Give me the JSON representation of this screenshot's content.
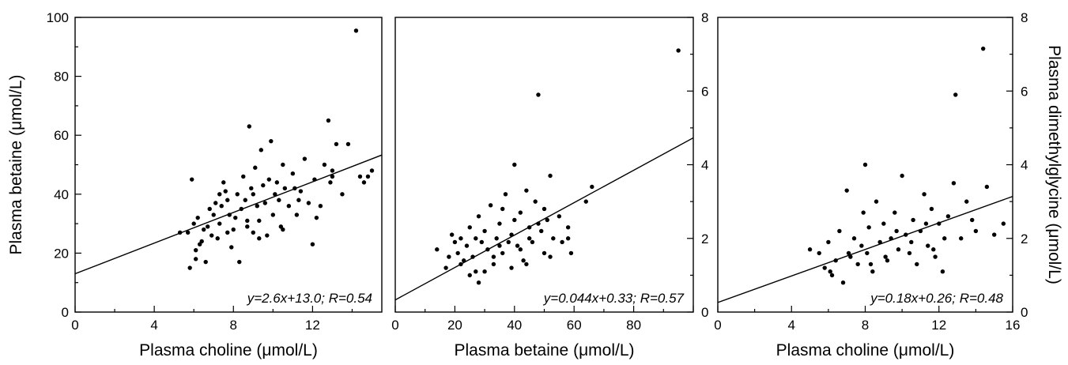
{
  "chart_data": [
    {
      "type": "scatter",
      "xlabel": "Plasma choline (μmol/L)",
      "ylabel": "Plasma betaine (μmol/L)",
      "xlim": [
        0,
        15.5
      ],
      "ylim": [
        0,
        100
      ],
      "xticks": [
        0,
        4,
        8,
        12
      ],
      "yticks": [
        0,
        20,
        40,
        60,
        80,
        100
      ],
      "fit": {
        "slope": 2.6,
        "intercept": 13.0
      },
      "annotation": "y=2.6x+13.0; R=0.54",
      "points": [
        [
          5.3,
          27
        ],
        [
          5.7,
          27
        ],
        [
          5.8,
          15
        ],
        [
          5.9,
          45
        ],
        [
          6.0,
          30
        ],
        [
          6.1,
          18
        ],
        [
          6.2,
          32
        ],
        [
          6.3,
          23
        ],
        [
          6.4,
          24
        ],
        [
          6.5,
          28
        ],
        [
          6.6,
          17
        ],
        [
          6.7,
          29
        ],
        [
          6.8,
          35
        ],
        [
          6.9,
          26
        ],
        [
          7.0,
          33
        ],
        [
          7.1,
          37
        ],
        [
          7.2,
          25
        ],
        [
          7.3,
          40
        ],
        [
          7.4,
          36
        ],
        [
          7.5,
          44
        ],
        [
          7.6,
          41
        ],
        [
          7.7,
          38
        ],
        [
          7.8,
          33
        ],
        [
          7.9,
          22
        ],
        [
          8.0,
          28
        ],
        [
          8.1,
          32
        ],
        [
          8.2,
          40
        ],
        [
          8.3,
          17
        ],
        [
          8.4,
          35
        ],
        [
          8.5,
          46
        ],
        [
          8.6,
          38
        ],
        [
          8.7,
          29
        ],
        [
          8.8,
          63
        ],
        [
          8.9,
          42
        ],
        [
          9.0,
          27
        ],
        [
          9.1,
          49
        ],
        [
          9.2,
          36
        ],
        [
          9.3,
          31
        ],
        [
          9.4,
          55
        ],
        [
          9.5,
          43
        ],
        [
          9.6,
          37
        ],
        [
          9.7,
          26
        ],
        [
          9.8,
          45
        ],
        [
          9.9,
          58
        ],
        [
          10.0,
          33
        ],
        [
          10.1,
          40
        ],
        [
          10.2,
          44
        ],
        [
          10.3,
          38
        ],
        [
          10.4,
          29
        ],
        [
          10.5,
          50
        ],
        [
          10.6,
          42
        ],
        [
          10.8,
          36
        ],
        [
          11.0,
          47
        ],
        [
          11.2,
          33
        ],
        [
          11.4,
          41
        ],
        [
          11.6,
          52
        ],
        [
          11.8,
          37
        ],
        [
          12.0,
          23
        ],
        [
          12.1,
          45
        ],
        [
          12.2,
          32
        ],
        [
          12.4,
          36
        ],
        [
          12.6,
          50
        ],
        [
          12.8,
          65
        ],
        [
          13.0,
          46
        ],
        [
          13.2,
          57
        ],
        [
          13.5,
          40
        ],
        [
          13.8,
          57
        ],
        [
          14.2,
          95.5
        ],
        [
          14.4,
          46
        ],
        [
          14.6,
          44
        ],
        [
          15.0,
          48
        ],
        [
          6.1,
          21
        ],
        [
          7.3,
          30
        ],
        [
          8.7,
          31
        ],
        [
          9.3,
          25
        ],
        [
          10.5,
          28
        ],
        [
          11.1,
          42
        ],
        [
          13.0,
          48
        ],
        [
          7.7,
          27
        ],
        [
          9.0,
          40
        ],
        [
          11.3,
          38
        ],
        [
          12.9,
          44
        ],
        [
          14.8,
          46
        ]
      ]
    },
    {
      "type": "scatter",
      "xlabel": "Plasma betaine (μmol/L)",
      "ylabel": "",
      "xlim": [
        0,
        100
      ],
      "ylim": [
        0,
        8
      ],
      "xticks": [
        0,
        20,
        40,
        60,
        80
      ],
      "yticks": [
        0,
        2,
        4,
        6,
        8
      ],
      "fit": {
        "slope": 0.044,
        "intercept": 0.33
      },
      "annotation": "y=0.044x+0.33; R=0.57",
      "points": [
        [
          14,
          1.7
        ],
        [
          17,
          1.2
        ],
        [
          18,
          1.5
        ],
        [
          19,
          2.1
        ],
        [
          20,
          1.9
        ],
        [
          21,
          1.6
        ],
        [
          22,
          2.0
        ],
        [
          23,
          1.4
        ],
        [
          24,
          1.8
        ],
        [
          25,
          2.3
        ],
        [
          26,
          1.5
        ],
        [
          27,
          1.1
        ],
        [
          28,
          2.6
        ],
        [
          29,
          1.9
        ],
        [
          30,
          2.2
        ],
        [
          31,
          1.7
        ],
        [
          32,
          2.9
        ],
        [
          33,
          1.3
        ],
        [
          34,
          2.0
        ],
        [
          35,
          2.4
        ],
        [
          36,
          1.6
        ],
        [
          37,
          3.2
        ],
        [
          38,
          1.9
        ],
        [
          39,
          2.1
        ],
        [
          40,
          4.0
        ],
        [
          41,
          1.8
        ],
        [
          42,
          2.7
        ],
        [
          43,
          1.4
        ],
        [
          44,
          3.3
        ],
        [
          45,
          2.3
        ],
        [
          46,
          1.9
        ],
        [
          47,
          3.0
        ],
        [
          48,
          5.9
        ],
        [
          49,
          2.2
        ],
        [
          50,
          1.6
        ],
        [
          51,
          2.5
        ],
        [
          52,
          3.7
        ],
        [
          53,
          2.0
        ],
        [
          55,
          2.6
        ],
        [
          56,
          1.9
        ],
        [
          58,
          2.3
        ],
        [
          59,
          1.6
        ],
        [
          64,
          3.0
        ],
        [
          66,
          3.4
        ],
        [
          95,
          7.1
        ],
        [
          25,
          1.0
        ],
        [
          28,
          0.8
        ],
        [
          30,
          1.1
        ],
        [
          33,
          1.5
        ],
        [
          36,
          2.8
        ],
        [
          39,
          1.2
        ],
        [
          42,
          1.7
        ],
        [
          45,
          2.0
        ],
        [
          48,
          2.4
        ],
        [
          52,
          1.5
        ],
        [
          22,
          1.3
        ],
        [
          27,
          2.0
        ],
        [
          35,
          1.8
        ],
        [
          40,
          2.5
        ],
        [
          44,
          1.3
        ],
        [
          50,
          2.8
        ],
        [
          58,
          2.0
        ]
      ]
    },
    {
      "type": "scatter",
      "xlabel": "Plasma choline (μmol/L)",
      "ylabel": "Plasma dimethylglycine (μmol/L)",
      "xlim": [
        0,
        16
      ],
      "ylim": [
        0,
        8
      ],
      "xticks": [
        0,
        4,
        8,
        12,
        16
      ],
      "yticks": [
        0,
        2,
        4,
        6,
        8
      ],
      "fit": {
        "slope": 0.18,
        "intercept": 0.26
      },
      "annotation": "y=0.18x+0.26; R=0.48",
      "points": [
        [
          5.0,
          1.7
        ],
        [
          5.5,
          1.6
        ],
        [
          5.8,
          1.2
        ],
        [
          6.0,
          1.9
        ],
        [
          6.2,
          1.0
        ],
        [
          6.4,
          1.4
        ],
        [
          6.6,
          2.2
        ],
        [
          6.8,
          0.8
        ],
        [
          7.0,
          3.3
        ],
        [
          7.2,
          1.5
        ],
        [
          7.4,
          2.0
        ],
        [
          7.6,
          1.3
        ],
        [
          7.8,
          1.8
        ],
        [
          8.0,
          4.0
        ],
        [
          8.1,
          1.6
        ],
        [
          8.2,
          2.3
        ],
        [
          8.4,
          1.1
        ],
        [
          8.6,
          3.0
        ],
        [
          8.8,
          1.9
        ],
        [
          9.0,
          2.4
        ],
        [
          9.2,
          1.4
        ],
        [
          9.4,
          2.0
        ],
        [
          9.6,
          2.7
        ],
        [
          9.8,
          1.7
        ],
        [
          10.0,
          3.7
        ],
        [
          10.2,
          2.1
        ],
        [
          10.4,
          1.6
        ],
        [
          10.6,
          2.5
        ],
        [
          10.8,
          1.3
        ],
        [
          11.0,
          2.2
        ],
        [
          11.2,
          3.2
        ],
        [
          11.4,
          1.8
        ],
        [
          11.6,
          2.8
        ],
        [
          11.8,
          1.5
        ],
        [
          12.0,
          2.4
        ],
        [
          12.2,
          1.1
        ],
        [
          12.5,
          2.6
        ],
        [
          12.8,
          3.5
        ],
        [
          12.9,
          5.9
        ],
        [
          13.2,
          2.0
        ],
        [
          13.5,
          3.0
        ],
        [
          14.0,
          2.2
        ],
        [
          14.4,
          7.15
        ],
        [
          14.6,
          3.4
        ],
        [
          15.0,
          2.1
        ],
        [
          15.5,
          2.4
        ],
        [
          6.1,
          1.1
        ],
        [
          7.1,
          1.6
        ],
        [
          8.3,
          1.3
        ],
        [
          9.1,
          1.5
        ],
        [
          10.5,
          1.9
        ],
        [
          11.3,
          2.4
        ],
        [
          12.3,
          2.0
        ],
        [
          13.8,
          2.5
        ],
        [
          7.9,
          2.7
        ],
        [
          9.7,
          2.2
        ],
        [
          11.7,
          1.7
        ]
      ]
    }
  ]
}
